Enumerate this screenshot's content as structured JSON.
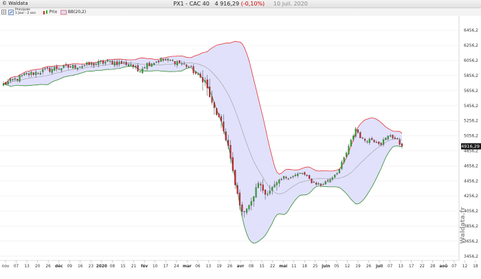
{
  "app": {
    "name": "Waldata"
  },
  "title": {
    "symbol": "PX1",
    "name": "CAC 40",
    "price": "4 916,29",
    "change": "(-0,10%)",
    "date": "10 juil. 2020"
  },
  "toolbar": {
    "panel_label": "Principale",
    "panel_sub": "1 Jour - 2 ans",
    "price_label": "Prix",
    "bb_label": "BB(20,2)"
  },
  "colors": {
    "up": "#2ab32a",
    "down": "#d8222a",
    "band_fill": "#dcdcfb",
    "upper_band": "#e53030",
    "lower_band": "#2f8a2f",
    "middle": "#999999"
  },
  "watermark": "Waldata.fr",
  "chart_data": {
    "type": "candlestick",
    "y_ticks": [
      "6456,2",
      "6256,2",
      "6056,2",
      "5856,2",
      "5656,2",
      "5456,2",
      "5256,2",
      "5056,2",
      "4856,2",
      "4656,2",
      "4456,2",
      "4256,2",
      "4056,2",
      "3856,2",
      "3656,2",
      "3456,2"
    ],
    "ylim": [
      3400,
      6650
    ],
    "last_price_label": "4916,29",
    "x_tick_labels": [
      "nov",
      "07",
      "13",
      "20",
      "26",
      "déc",
      "09",
      "16",
      "23",
      "2020",
      "08",
      "15",
      "21",
      "fév",
      "10",
      "17",
      "24",
      "mar",
      "06",
      "13",
      "19",
      "26",
      "avr",
      "08",
      "15",
      "22",
      "mai",
      "11",
      "18",
      "25",
      "juin",
      "05",
      "12",
      "19",
      "26",
      "juil",
      "07",
      "13",
      "17",
      "22",
      "28",
      "aoû",
      "07",
      "12",
      "18"
    ],
    "bold_ticks": [
      "déc",
      "2020",
      "fév",
      "mar",
      "avr",
      "mai",
      "juin",
      "juil",
      "aoû"
    ],
    "close_anchors": [
      [
        0,
        5740
      ],
      [
        10,
        5870
      ],
      [
        22,
        5950
      ],
      [
        35,
        5990
      ],
      [
        45,
        6040
      ],
      [
        55,
        6010
      ],
      [
        58,
        5920
      ],
      [
        62,
        6010
      ],
      [
        68,
        6065
      ],
      [
        75,
        6040
      ],
      [
        80,
        5975
      ],
      [
        84,
        5850
      ],
      [
        87,
        5780
      ],
      [
        90,
        5480
      ],
      [
        94,
        5220
      ],
      [
        97,
        4920
      ],
      [
        100,
        4400
      ],
      [
        103,
        4030
      ],
      [
        107,
        4170
      ],
      [
        110,
        4440
      ],
      [
        113,
        4280
      ],
      [
        117,
        4390
      ],
      [
        121,
        4500
      ],
      [
        125,
        4520
      ],
      [
        129,
        4560
      ],
      [
        133,
        4450
      ],
      [
        137,
        4400
      ],
      [
        141,
        4480
      ],
      [
        145,
        4610
      ],
      [
        149,
        4900
      ],
      [
        152,
        5150
      ],
      [
        155,
        5000
      ],
      [
        159,
        5010
      ],
      [
        163,
        4960
      ],
      [
        167,
        5070
      ],
      [
        170,
        4990
      ],
      [
        172,
        4916.29
      ]
    ]
  }
}
